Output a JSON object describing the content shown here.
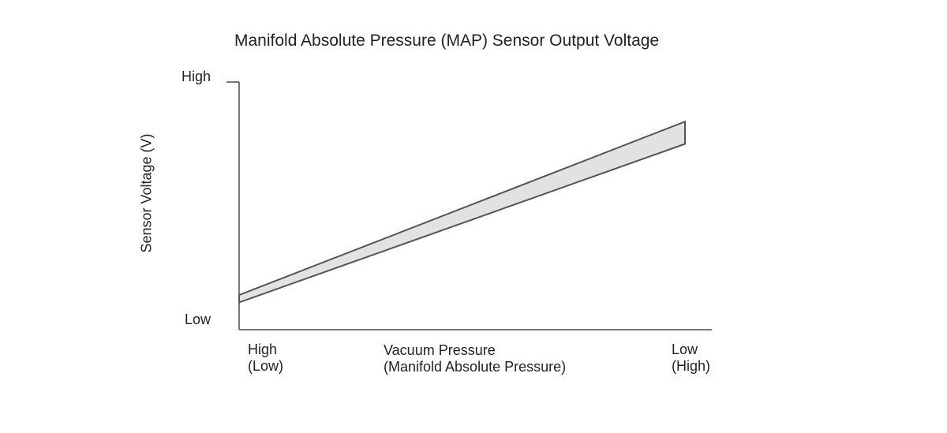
{
  "chart_data": {
    "type": "area",
    "title": "Manifold Absolute Pressure (MAP) Sensor Output Voltage",
    "ylabel": "Sensor Voltage (V)",
    "xlabel": [
      "Vacuum Pressure",
      "(Manifold Absolute Pressure)"
    ],
    "yticks": [
      "High",
      "Low"
    ],
    "xticks": [
      "High\n(Low)",
      "Low\n(High)"
    ],
    "x": [
      0,
      1
    ],
    "ylim": [
      0,
      1
    ],
    "xlim": [
      0,
      1.06
    ],
    "series": [
      {
        "values_lower": [
          0.11,
          0.75
        ],
        "values_upper": [
          0.14,
          0.84
        ]
      }
    ],
    "grid": false,
    "colors": {
      "band_fill": "#e2e2e2",
      "band_edge": "#555555",
      "axis": "#777777"
    }
  }
}
